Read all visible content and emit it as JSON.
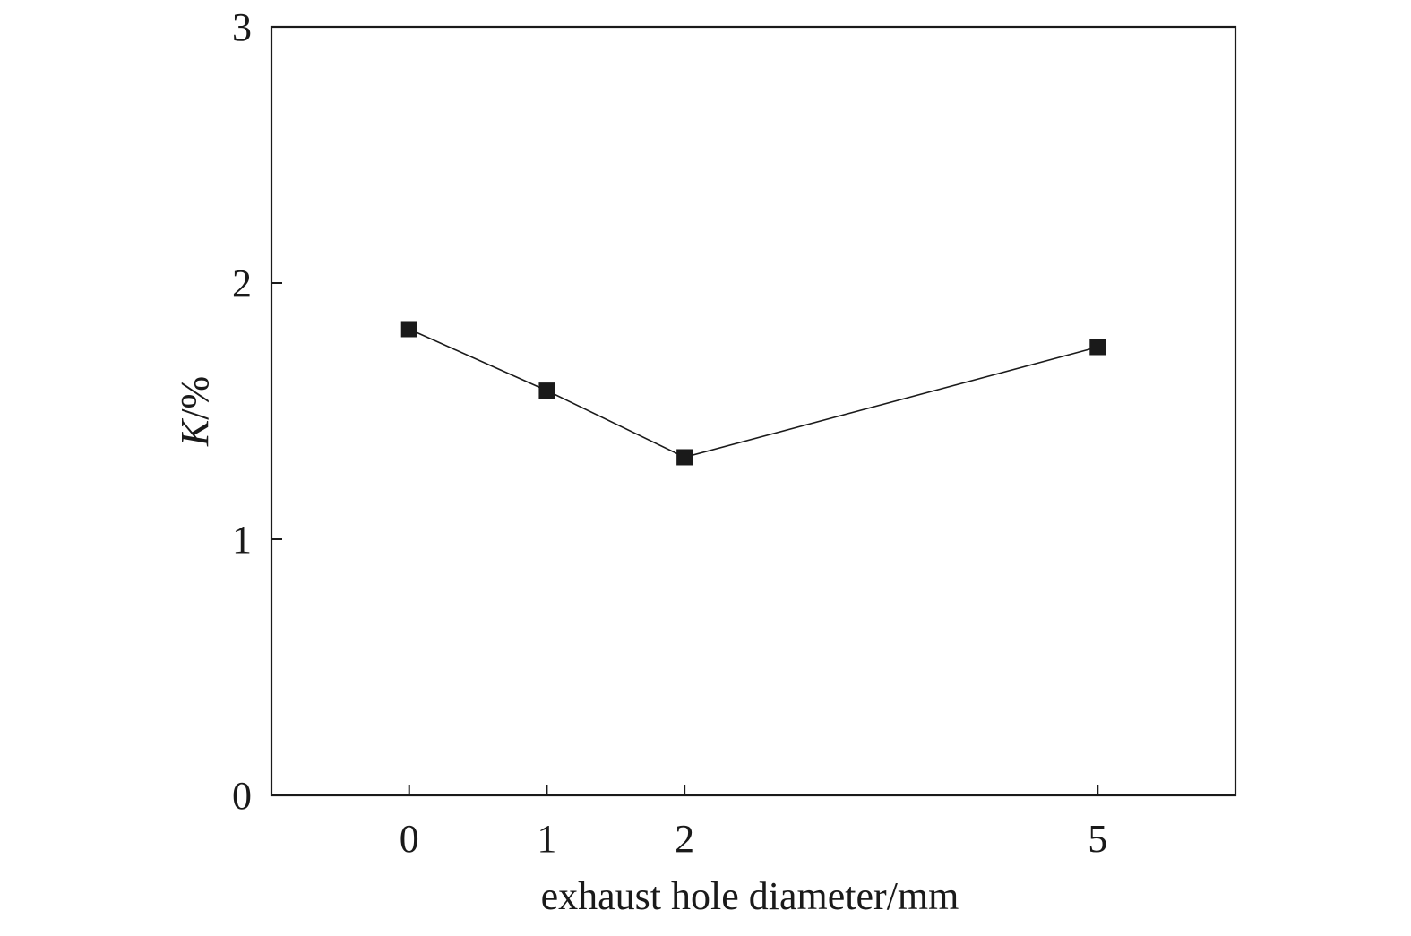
{
  "chart_data": {
    "type": "line",
    "title": "",
    "xlabel": "exhaust hole diameter/mm",
    "ylabel_italic": "K",
    "ylabel_rest": "/%",
    "x": [
      0,
      1,
      2,
      5
    ],
    "series": [
      {
        "values": [
          1.82,
          1.58,
          1.32,
          1.75
        ]
      }
    ],
    "x_ticks": [
      "0",
      "1",
      "2",
      "5"
    ],
    "y_ticks": [
      "0",
      "1",
      "2",
      "3"
    ],
    "xlim": [
      -1,
      6
    ],
    "ylim": [
      0,
      3
    ],
    "grid": false,
    "legend": "none",
    "marker": "filled-square",
    "line_color": "#1a1a1a",
    "marker_color": "#1a1a1a"
  }
}
